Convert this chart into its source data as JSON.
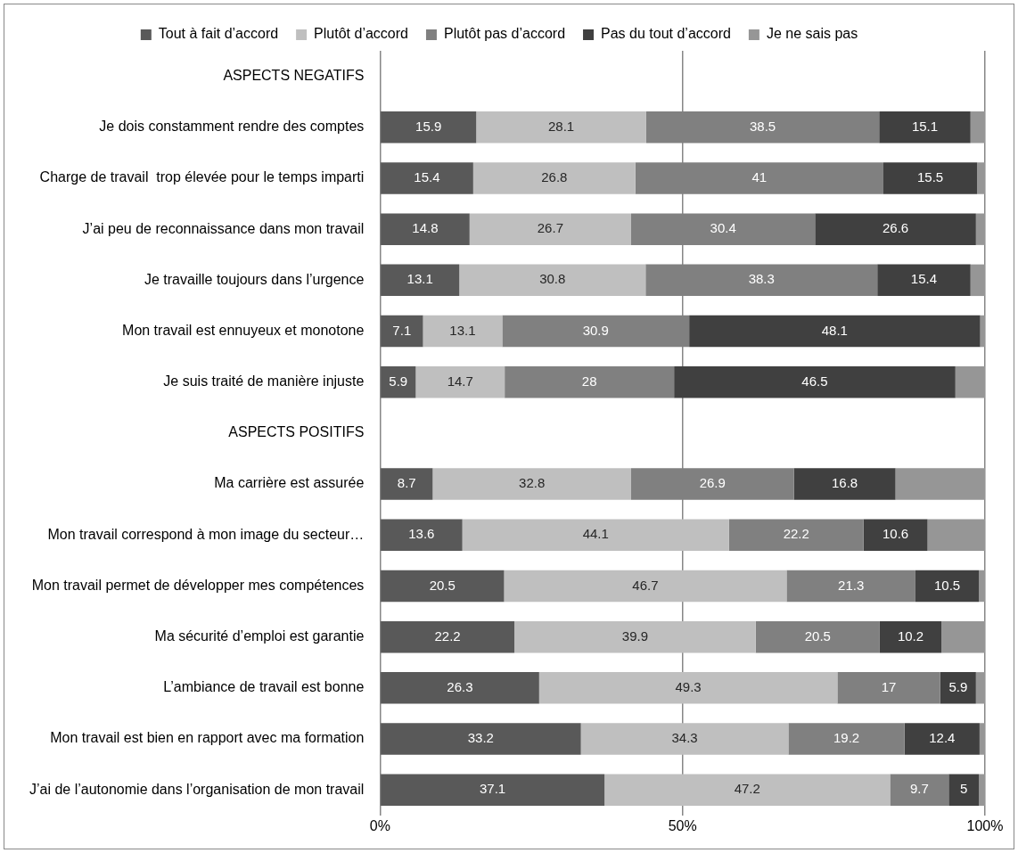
{
  "chart_data": {
    "type": "bar",
    "orientation": "horizontal",
    "stacked": true,
    "legend": "top",
    "grid": "x",
    "xlim": [
      0,
      100
    ],
    "xticks": [
      {
        "value": 0,
        "label": "0%"
      },
      {
        "value": 50,
        "label": "50%"
      },
      {
        "value": 100,
        "label": "100%"
      }
    ],
    "categories": [
      "ASPECTS NEGATIFS",
      "Je dois constamment rendre des comptes",
      "Charge de travail  trop élevée pour le temps imparti",
      "J’ai peu de reconnaissance dans mon travail",
      "Je travaille toujours dans l’urgence",
      "Mon travail est ennuyeux et monotone",
      "Je suis traité de manière injuste",
      "ASPECTS POSITIFS",
      "Ma carrière est assurée",
      "Mon travail correspond à mon image du secteur…",
      "Mon travail permet de développer mes compétences",
      "Ma sécurité d’emploi est garantie",
      "L’ambiance de travail est bonne",
      "Mon travail est bien en rapport avec ma formation",
      "J’ai de l’autonomie dans l’organisation de mon travail"
    ],
    "series": [
      {
        "name": "Tout à fait d’accord",
        "color": "#595959",
        "values": [
          null,
          15.9,
          15.4,
          14.8,
          13.1,
          7.1,
          5.9,
          null,
          8.7,
          13.6,
          20.5,
          22.2,
          26.3,
          33.2,
          37.1
        ],
        "value_labels": [
          null,
          "15.9",
          "15.4",
          "14.8",
          "13.1",
          "7.1",
          "5.9",
          null,
          "8.7",
          "13.6",
          "20.5",
          "22.2",
          "26.3",
          "33.2",
          "37.1"
        ]
      },
      {
        "name": "Plutôt d’accord",
        "color": "#bfbfbf",
        "values": [
          null,
          28.1,
          26.8,
          26.7,
          30.8,
          13.1,
          14.7,
          null,
          32.8,
          44.1,
          46.7,
          39.9,
          49.3,
          34.3,
          47.2
        ],
        "value_labels": [
          null,
          "28.1",
          "26.8",
          "26.7",
          "30.8",
          "13.1",
          "14.7",
          null,
          "32.8",
          "44.1",
          "46.7",
          "39.9",
          "49.3",
          "34.3",
          "47.2"
        ]
      },
      {
        "name": "Plutôt pas d’accord",
        "color": "#808080",
        "values": [
          null,
          38.5,
          41,
          30.4,
          38.3,
          30.9,
          28,
          null,
          26.9,
          22.2,
          21.3,
          20.5,
          17,
          19.2,
          9.7
        ],
        "value_labels": [
          null,
          "38.5",
          "41",
          "30.4",
          "38.3",
          "30.9",
          "28",
          null,
          "26.9",
          "22.2",
          "21.3",
          "20.5",
          "17",
          "19.2",
          "9.7"
        ]
      },
      {
        "name": "Pas du tout d’accord",
        "color": "#404040",
        "values": [
          null,
          15.1,
          15.5,
          26.6,
          15.4,
          48.1,
          46.5,
          null,
          16.8,
          10.6,
          10.5,
          10.2,
          5.9,
          12.4,
          5
        ],
        "value_labels": [
          null,
          "15.1",
          "15.5",
          "26.6",
          "15.4",
          "48.1",
          "46.5",
          null,
          "16.8",
          "10.6",
          "10.5",
          "10.2",
          "5.9",
          "12.4",
          "5"
        ]
      },
      {
        "name": "Je ne sais pas",
        "color": "#969696",
        "values": [
          null,
          2.4,
          1.3,
          1.5,
          2.4,
          0.8,
          4.9,
          null,
          14.8,
          9.5,
          1,
          7.2,
          1.5,
          0.9,
          1
        ]
      }
    ]
  }
}
